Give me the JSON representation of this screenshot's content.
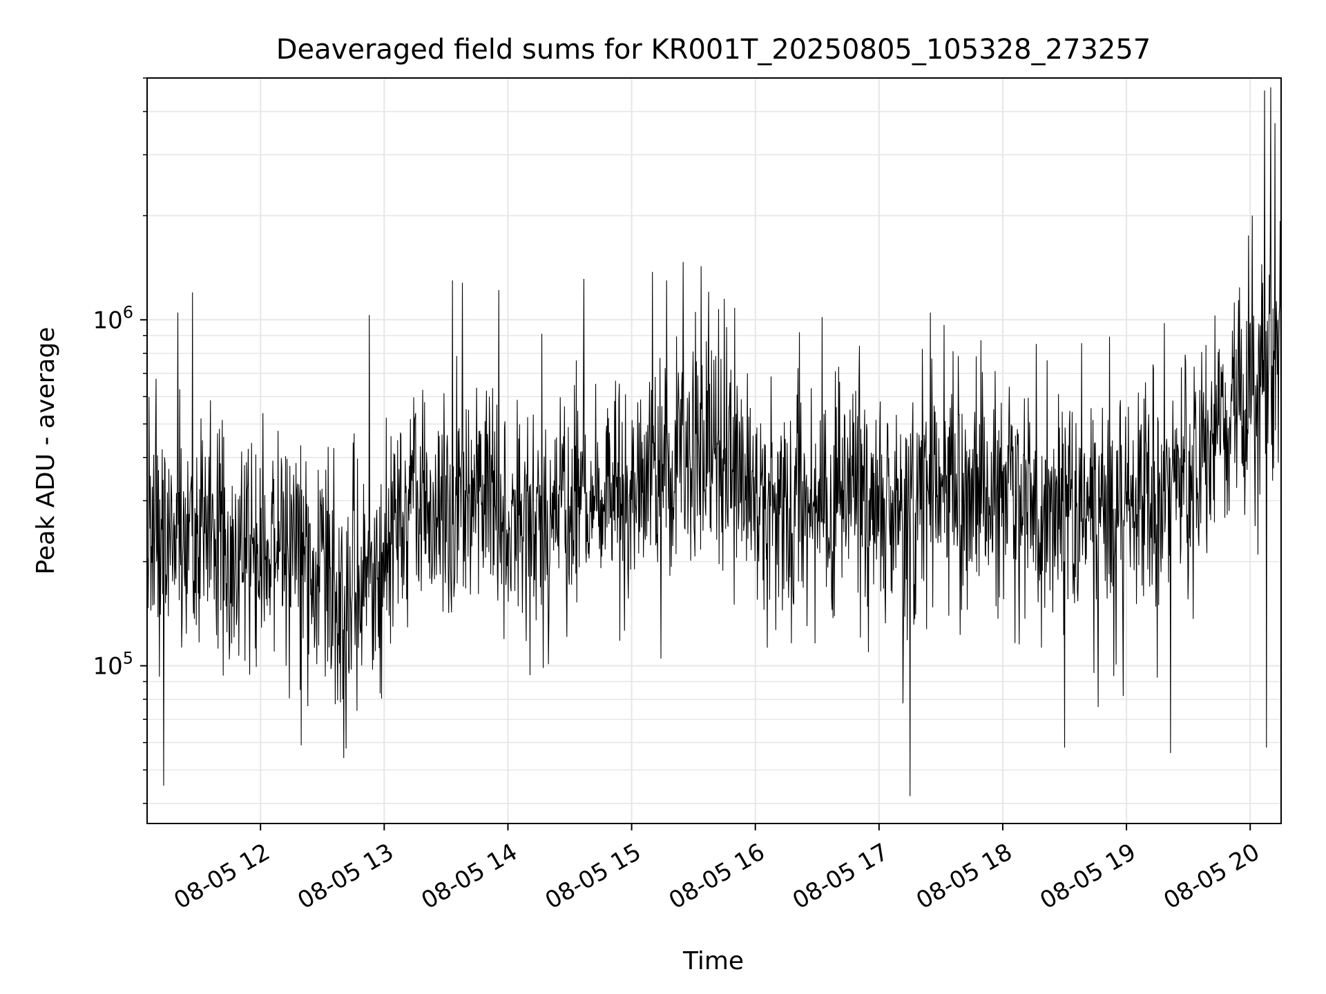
{
  "chart_data": {
    "type": "line",
    "title": "Deaveraged field sums for KR001T_20250805_105328_273257",
    "xlabel": "Time",
    "ylabel": "Peak ADU - average",
    "yscale": "log",
    "ylim": [
      35000,
      5000000
    ],
    "xlim": [
      "2025-08-05 11:05",
      "2025-08-05 20:15"
    ],
    "grid": true,
    "grid_color": "#e6e6e6",
    "line_color": "#000000",
    "x_ticks": [
      {
        "time": "2025-08-05 12:00",
        "label": "08-05 12"
      },
      {
        "time": "2025-08-05 13:00",
        "label": "08-05 13"
      },
      {
        "time": "2025-08-05 14:00",
        "label": "08-05 14"
      },
      {
        "time": "2025-08-05 15:00",
        "label": "08-05 15"
      },
      {
        "time": "2025-08-05 16:00",
        "label": "08-05 16"
      },
      {
        "time": "2025-08-05 17:00",
        "label": "08-05 17"
      },
      {
        "time": "2025-08-05 18:00",
        "label": "08-05 18"
      },
      {
        "time": "2025-08-05 19:00",
        "label": "08-05 19"
      },
      {
        "time": "2025-08-05 20:00",
        "label": "08-05 20"
      }
    ],
    "y_ticks": [
      {
        "value": 100000,
        "base": "10",
        "exp": "5"
      },
      {
        "value": 1000000,
        "base": "10",
        "exp": "6"
      }
    ],
    "trend": [
      {
        "time": "2025-08-05 11:05",
        "value": 240000
      },
      {
        "time": "2025-08-05 11:30",
        "value": 220000
      },
      {
        "time": "2025-08-05 12:00",
        "value": 210000
      },
      {
        "time": "2025-08-05 12:30",
        "value": 200000
      },
      {
        "time": "2025-08-05 12:45",
        "value": 160000
      },
      {
        "time": "2025-08-05 13:00",
        "value": 210000
      },
      {
        "time": "2025-08-05 13:10",
        "value": 280000
      },
      {
        "time": "2025-08-05 13:30",
        "value": 300000
      },
      {
        "time": "2025-08-05 13:45",
        "value": 330000
      },
      {
        "time": "2025-08-05 14:00",
        "value": 260000
      },
      {
        "time": "2025-08-05 14:30",
        "value": 270000
      },
      {
        "time": "2025-08-05 15:00",
        "value": 350000
      },
      {
        "time": "2025-08-05 15:30",
        "value": 420000
      },
      {
        "time": "2025-08-05 15:50",
        "value": 380000
      },
      {
        "time": "2025-08-05 16:00",
        "value": 280000
      },
      {
        "time": "2025-08-05 16:30",
        "value": 310000
      },
      {
        "time": "2025-08-05 17:00",
        "value": 300000
      },
      {
        "time": "2025-08-05 17:30",
        "value": 320000
      },
      {
        "time": "2025-08-05 18:00",
        "value": 300000
      },
      {
        "time": "2025-08-05 18:30",
        "value": 300000
      },
      {
        "time": "2025-08-05 19:00",
        "value": 300000
      },
      {
        "time": "2025-08-05 19:30",
        "value": 310000
      },
      {
        "time": "2025-08-05 19:45",
        "value": 450000
      },
      {
        "time": "2025-08-05 20:00",
        "value": 600000
      },
      {
        "time": "2025-08-05 20:10",
        "value": 800000
      },
      {
        "time": "2025-08-05 20:15",
        "value": 900000
      }
    ],
    "noise_decades": 0.17,
    "notable_points": [
      {
        "time": "2025-08-05 11:13",
        "value": 45000
      },
      {
        "time": "2025-08-05 11:20",
        "value": 1050000
      },
      {
        "time": "2025-08-05 11:27",
        "value": 1200000
      },
      {
        "time": "2025-08-05 13:33",
        "value": 1300000
      },
      {
        "time": "2025-08-05 13:38",
        "value": 1280000
      },
      {
        "time": "2025-08-05 15:17",
        "value": 1300000
      },
      {
        "time": "2025-08-05 15:25",
        "value": 1470000
      },
      {
        "time": "2025-08-05 15:45",
        "value": 1150000
      },
      {
        "time": "2025-08-05 17:15",
        "value": 42000
      },
      {
        "time": "2025-08-05 17:25",
        "value": 1050000
      },
      {
        "time": "2025-08-05 18:30",
        "value": 58000
      },
      {
        "time": "2025-08-05 20:07",
        "value": 4600000
      },
      {
        "time": "2025-08-05 20:08",
        "value": 58000
      },
      {
        "time": "2025-08-05 20:10",
        "value": 4700000
      },
      {
        "time": "2025-08-05 20:12",
        "value": 3700000
      },
      {
        "time": "2025-08-05 20:15",
        "value": 210000
      }
    ]
  }
}
